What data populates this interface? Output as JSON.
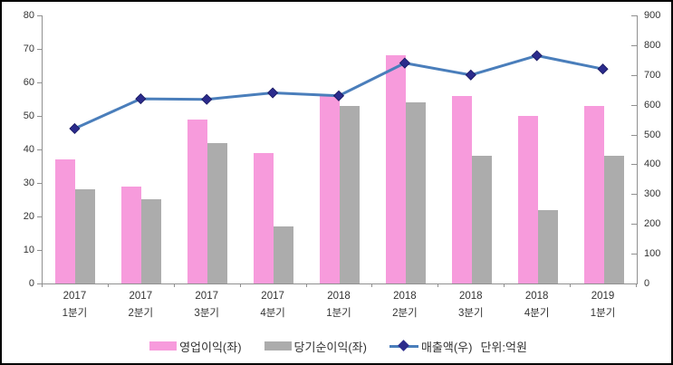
{
  "chart_data": {
    "type": "bar",
    "combo": "clustered bars (left axis) + line with diamond markers (right axis)",
    "title": "",
    "grid": false,
    "categories": [
      {
        "line1": "2017",
        "line2": "1분기"
      },
      {
        "line1": "2017",
        "line2": "2분기"
      },
      {
        "line1": "2017",
        "line2": "3분기"
      },
      {
        "line1": "2017",
        "line2": "4분기"
      },
      {
        "line1": "2018",
        "line2": "1분기"
      },
      {
        "line1": "2018",
        "line2": "2분기"
      },
      {
        "line1": "2018",
        "line2": "3분기"
      },
      {
        "line1": "2018",
        "line2": "4분기"
      },
      {
        "line1": "2019",
        "line2": "1분기"
      }
    ],
    "series": [
      {
        "name": "영업이익(좌)",
        "type": "bar",
        "axis": "left",
        "color": "#F79BDC",
        "values": [
          37,
          29,
          49,
          39,
          56,
          68,
          56,
          50,
          53
        ]
      },
      {
        "name": "당기순이익(좌)",
        "type": "bar",
        "axis": "left",
        "color": "#ACACAC",
        "values": [
          28,
          25,
          42,
          17,
          53,
          54,
          38,
          22,
          38
        ]
      },
      {
        "name": "매출액(우)",
        "type": "line",
        "axis": "right",
        "color": "#4A7EBB",
        "marker": "diamond",
        "marker_color": "#2B2B8C",
        "values": [
          520,
          620,
          618,
          640,
          630,
          740,
          700,
          765,
          720
        ]
      }
    ],
    "left_axis": {
      "min": 0,
      "max": 80,
      "step": 10,
      "tick_labels": [
        "0",
        "10",
        "20",
        "30",
        "40",
        "50",
        "60",
        "70",
        "80"
      ]
    },
    "right_axis": {
      "min": 0,
      "max": 900,
      "step": 100,
      "tick_labels": [
        "0",
        "100",
        "200",
        "300",
        "400",
        "500",
        "600",
        "700",
        "800",
        "900"
      ]
    },
    "legend": {
      "position": "bottom",
      "units_note": "단위:억원"
    },
    "colors": {
      "axis_line": "#909090",
      "text": "#333333",
      "frame_border": "#000000"
    }
  }
}
